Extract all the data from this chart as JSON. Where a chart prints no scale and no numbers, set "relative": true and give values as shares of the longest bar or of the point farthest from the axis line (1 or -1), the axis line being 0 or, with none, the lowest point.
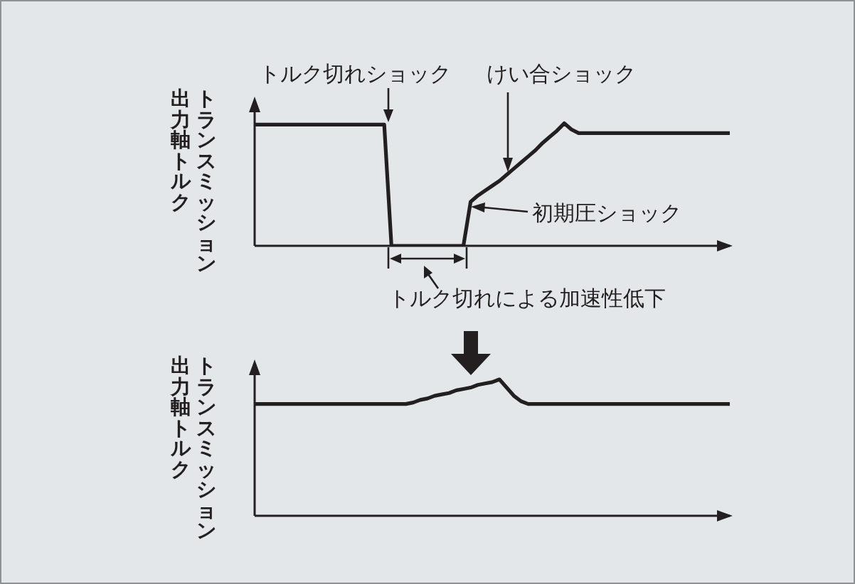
{
  "chart_data": [
    {
      "type": "line",
      "ylabel": "トランスミッション出力軸トルク",
      "categories": [
        null,
        null,
        null,
        null,
        null,
        null,
        null,
        null,
        null,
        null,
        null,
        null,
        null,
        null,
        null,
        null,
        null,
        null,
        null,
        null,
        null,
        null,
        null,
        null,
        null,
        null,
        null,
        null,
        null,
        null,
        null,
        null,
        null,
        null,
        null,
        null,
        null,
        null,
        null,
        null,
        null,
        null,
        null,
        null,
        null,
        null,
        null,
        null,
        null,
        null,
        null,
        null,
        null,
        null,
        null,
        null,
        null,
        null,
        null,
        null,
        null,
        null,
        null,
        null,
        null,
        null,
        null
      ],
      "relative": true,
      "marker": "none",
      "series": [
        {
          "color": "#231f20",
          "values": [
            0.99,
            0.99,
            0.99,
            0.99,
            0.99,
            0.99,
            0.99,
            0.99,
            0.99,
            0.99,
            0.99,
            0.99,
            0.99,
            0.99,
            0.99,
            0.99,
            0.99,
            0.99,
            0.99,
            0,
            0,
            0,
            0,
            0,
            0,
            0,
            0,
            0,
            0,
            0,
            0.36,
            0.41,
            0.45,
            0.49,
            0.53,
            0.58,
            0.63,
            0.68,
            0.73,
            0.78,
            0.84,
            0.89,
            0.94,
            1.0,
            0.95,
            0.92,
            0.92,
            0.92,
            0.92,
            0.92,
            0.92,
            0.92,
            0.92,
            0.92,
            0.92,
            0.92,
            0.92,
            0.92,
            0.92,
            0.92,
            0.92,
            0.92,
            0.92,
            0.92,
            0.92,
            0.92,
            0.92
          ]
        }
      ],
      "annotations": [
        "トルク切れショック",
        "けい合ショック",
        "初期圧ショック",
        "トルク切れによる加速性低下"
      ]
    },
    {
      "type": "line",
      "ylabel": "トランスミッション出力軸トルク",
      "categories": [
        null,
        null,
        null,
        null,
        null,
        null,
        null,
        null,
        null,
        null,
        null,
        null,
        null,
        null,
        null,
        null,
        null,
        null,
        null,
        null,
        null,
        null,
        null,
        null,
        null,
        null,
        null,
        null,
        null,
        null,
        null,
        null,
        null,
        null,
        null,
        null,
        null,
        null,
        null,
        null,
        null,
        null,
        null,
        null,
        null,
        null,
        null,
        null,
        null,
        null,
        null,
        null,
        null,
        null,
        null,
        null,
        null,
        null,
        null,
        null,
        null,
        null,
        null,
        null,
        null,
        null,
        null
      ],
      "relative": true,
      "marker": "none",
      "series": [
        {
          "color": "#231f20",
          "values": [
            0.82,
            0.82,
            0.82,
            0.82,
            0.82,
            0.82,
            0.82,
            0.82,
            0.82,
            0.82,
            0.82,
            0.82,
            0.82,
            0.82,
            0.82,
            0.82,
            0.82,
            0.82,
            0.82,
            0.82,
            0.82,
            0.82,
            0.83,
            0.85,
            0.86,
            0.88,
            0.89,
            0.9,
            0.92,
            0.93,
            0.94,
            0.96,
            0.97,
            0.98,
            1.0,
            0.94,
            0.88,
            0.84,
            0.82,
            0.82,
            0.82,
            0.82,
            0.82,
            0.82,
            0.82,
            0.82,
            0.82,
            0.82,
            0.82,
            0.82,
            0.82,
            0.82,
            0.82,
            0.82,
            0.82,
            0.82,
            0.82,
            0.82,
            0.82,
            0.82,
            0.82,
            0.82,
            0.82,
            0.82,
            0.82,
            0.82,
            0.82
          ]
        }
      ]
    }
  ]
}
